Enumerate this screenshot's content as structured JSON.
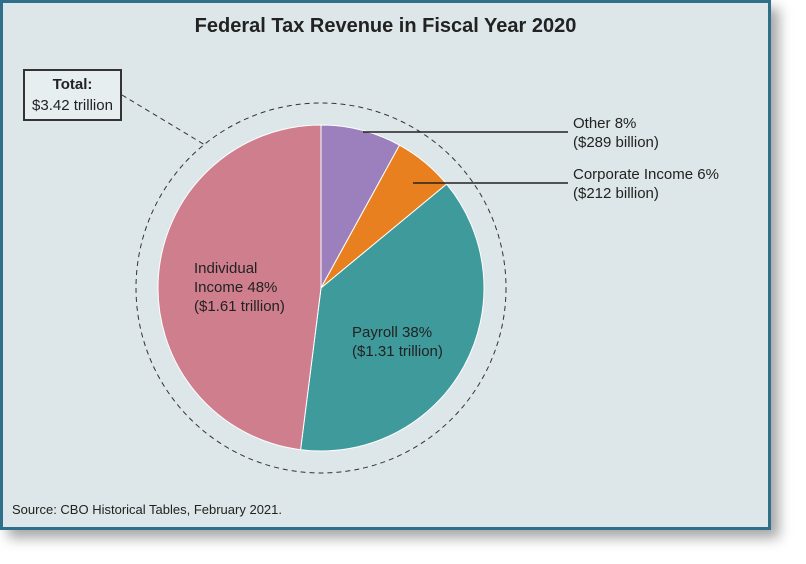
{
  "chart_data": {
    "type": "pie",
    "title": "Federal Tax Revenue in Fiscal Year 2020",
    "categories": [
      "Other",
      "Corporate Income",
      "Payroll",
      "Individual Income"
    ],
    "values": [
      8,
      6,
      38,
      48
    ],
    "value_labels": [
      "8%",
      "6%",
      "38%",
      "48%"
    ],
    "amount_labels": [
      "($289 billion)",
      "($212 billion)",
      "($1.31 trillion)",
      "($1.61 trillion)"
    ],
    "colors": [
      "#9b80bd",
      "#e8801f",
      "#3f9a9c",
      "#cf7e8d"
    ],
    "total_label": "Total:",
    "total": "$3.42 trillion",
    "source": "Source: CBO Historical Tables, February 2021."
  }
}
